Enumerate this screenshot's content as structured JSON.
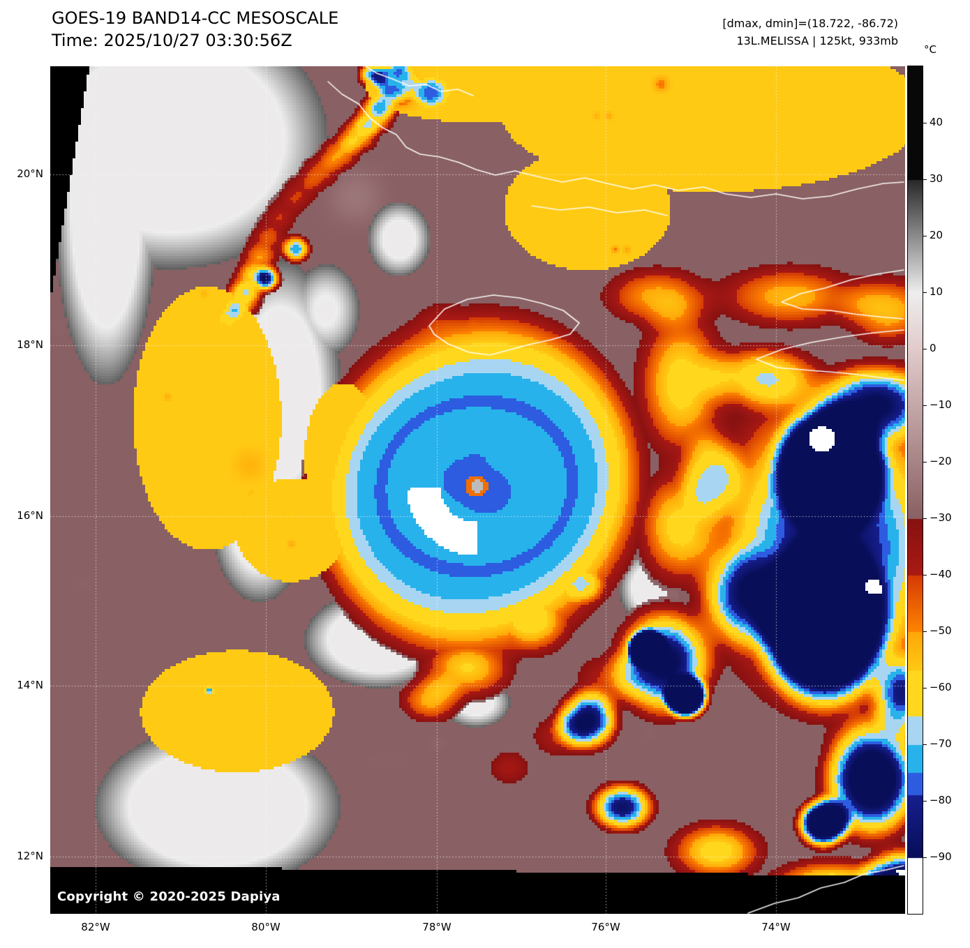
{
  "header": {
    "title": "GOES-19 BAND14-CC MESOSCALE",
    "time_line": "Time: 2025/10/27 03:30:56Z",
    "dmax_dmin": "[dmax, dmin]=(18.722, -86.72)",
    "storm_line": "13L.MELISSA | 125kt, 933mb"
  },
  "colorbar": {
    "unit": "°C",
    "ticks": [
      "40",
      "30",
      "20",
      "10",
      "0",
      "−10",
      "−20",
      "−30",
      "−40",
      "−50",
      "−60",
      "−70",
      "−80",
      "−90"
    ]
  },
  "map": {
    "lat_labels": [
      "20°N",
      "18°N",
      "16°N",
      "14°N",
      "12°N"
    ],
    "lon_labels": [
      "82°W",
      "80°W",
      "78°W",
      "76°W",
      "74°W"
    ],
    "copyright": "Copyright © 2020-2025 Dapiya"
  },
  "colors": {
    "background": "#ffffff",
    "map_fill": "#000000",
    "grid": "#ffffff",
    "warm_bg": "#bb9898",
    "cold_red": "#8c1414",
    "cold_orange": "#ff8400",
    "cold_yellow": "#ffd81e",
    "cold_pale_blue": "#a8d6f2",
    "cold_cyan": "#28b2eb",
    "cold_blue": "#2d5ce1",
    "cold_navy": "#161e8e",
    "cold_white": "#ffffff"
  }
}
